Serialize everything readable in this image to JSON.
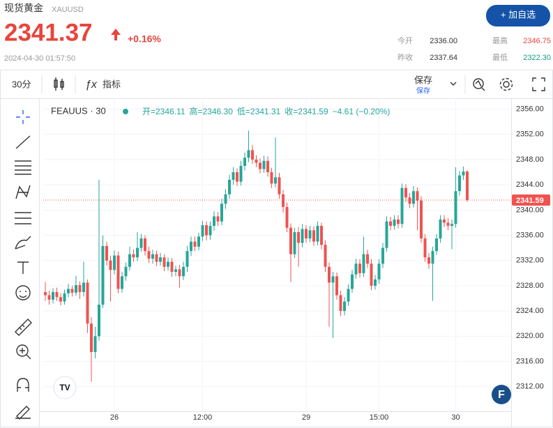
{
  "header": {
    "name": "现货黄金",
    "symbol": "XAUUSD",
    "price": "2341.37",
    "change": "+0.16%",
    "time": "2024-04-30 01:57:50",
    "button": "+ 加自选",
    "stats": [
      {
        "label": "今开",
        "value": "2336.00"
      },
      {
        "label": "最高",
        "value": "2346.75"
      },
      {
        "label": "昨收",
        "value": "2337.64"
      },
      {
        "label": "最低",
        "value": "2322.30"
      }
    ]
  },
  "toolbar": {
    "interval": "30分",
    "indicators": "指标",
    "save": "保存",
    "save_sub": "保存"
  },
  "chart_data": {
    "type": "candlestick",
    "legend_title": "FEAUUS · 30",
    "legend_items": [
      "开=2346.11",
      "高=2346.30",
      "低=2341.31",
      "收=2341.59",
      "−4.61 (−0.20%)"
    ],
    "up_color": "#26a69a",
    "down_color": "#ef5350",
    "grid": true,
    "categories": [
      null,
      null,
      null,
      null,
      null,
      null,
      null,
      null,
      null,
      null,
      null,
      null,
      null,
      null,
      null,
      null,
      null,
      null,
      "26",
      null,
      null,
      null,
      null,
      null,
      null,
      null,
      null,
      null,
      null,
      null,
      null,
      null,
      null,
      null,
      null,
      null,
      null,
      null,
      null,
      null,
      null,
      "12:00",
      null,
      null,
      null,
      null,
      null,
      null,
      null,
      null,
      null,
      null,
      null,
      null,
      null,
      null,
      null,
      null,
      null,
      null,
      null,
      null,
      null,
      null,
      null,
      null,
      null,
      null,
      "29",
      null,
      null,
      null,
      null,
      null,
      null,
      null,
      null,
      null,
      null,
      null,
      null,
      null,
      null,
      null,
      null,
      null,
      null,
      "15:00",
      null,
      null,
      null,
      null,
      null,
      null,
      null,
      null,
      null,
      null,
      null,
      null,
      null,
      null,
      null,
      null,
      null,
      null,
      null,
      "30",
      null,
      null,
      null
    ],
    "open": [
      2327.0,
      2326.5,
      2325.8,
      2327.0,
      2326.2,
      2325.5,
      2326.8,
      2327.5,
      2326.9,
      2328.1,
      2327.0,
      2328.5,
      2322.0,
      2317.5,
      2320.0,
      2325.0,
      2334.3,
      2332.0,
      2330.5,
      2332.8,
      2327.5,
      2329.5,
      2331.0,
      2333.0,
      2332.5,
      2334.0,
      2335.5,
      2333.5,
      2332.3,
      2333.0,
      2331.8,
      2332.5,
      2331.0,
      2331.8,
      2330.2,
      2330.6,
      2329.5,
      2331.0,
      2333.5,
      2335.0,
      2334.2,
      2335.8,
      2337.6,
      2336.0,
      2337.5,
      2339.0,
      2338.2,
      2341.0,
      2342.5,
      2344.8,
      2346.0,
      2344.5,
      2347.0,
      2348.3,
      2349.5,
      2348.0,
      2347.5,
      2346.5,
      2347.8,
      2346.0,
      2344.2,
      2345.2,
      2342.5,
      2340.5,
      2337.2,
      2333.0,
      2336.5,
      2334.8,
      2337.0,
      2335.5,
      2336.8,
      2335.0,
      2337.5,
      2334.5,
      2331.0,
      2328.5,
      2329.5,
      2326.5,
      2324.0,
      2325.5,
      2327.5,
      2329.8,
      2331.5,
      2330.0,
      2333.0,
      2331.5,
      2328.0,
      2329.0,
      2331.5,
      2334.0,
      2338.2,
      2337.5,
      2338.5,
      2337.8,
      2343.5,
      2342.0,
      2341.0,
      2343.0,
      2341.5,
      2335.5,
      2332.5,
      2331.5,
      2333.5,
      2335.5,
      2338.5,
      2338.0,
      2337.5,
      2337.8,
      2343.0,
      2345.5,
      2346.11
    ],
    "high": [
      2328.6,
      2327.2,
      2327.6,
      2327.7,
      2326.8,
      2327.4,
      2328.3,
      2328.0,
      2329.6,
      2328.7,
      2331.8,
      2329.0,
      2323.0,
      2321.5,
      2344.8,
      2336.0,
      2335.0,
      2332.8,
      2333.6,
      2333.4,
      2330.2,
      2331.7,
      2334.2,
      2333.8,
      2336.5,
      2336.2,
      2336.0,
      2334.2,
      2333.7,
      2333.6,
      2333.2,
      2333.0,
      2332.5,
      2332.4,
      2331.2,
      2331.3,
      2331.8,
      2334.3,
      2335.8,
      2335.8,
      2336.4,
      2338.3,
      2338.2,
      2338.2,
      2339.8,
      2339.7,
      2341.8,
      2343.3,
      2345.6,
      2346.8,
      2346.6,
      2347.8,
      2349.1,
      2352.6,
      2350.3,
      2348.7,
      2348.2,
      2348.6,
      2348.5,
      2346.7,
      2351.5,
      2345.9,
      2343.2,
      2341.2,
      2337.9,
      2337.2,
      2337.3,
      2337.8,
      2337.6,
      2337.5,
      2337.4,
      2338.2,
      2338.0,
      2335.2,
      2331.7,
      2330.2,
      2330.1,
      2327.2,
      2326.2,
      2328.2,
      2330.5,
      2332.3,
      2332.2,
      2335.8,
      2333.7,
      2332.2,
      2329.7,
      2332.2,
      2334.8,
      2339.0,
      2338.9,
      2339.2,
      2339.2,
      2344.2,
      2344.1,
      2342.7,
      2343.8,
      2343.6,
      2342.2,
      2336.2,
      2333.2,
      2334.2,
      2336.2,
      2339.2,
      2339.2,
      2338.7,
      2338.5,
      2346.8,
      2346.2,
      2346.9,
      2346.3
    ],
    "low": [
      2325.6,
      2325.0,
      2325.2,
      2325.6,
      2324.9,
      2325.0,
      2326.2,
      2326.3,
      2326.4,
      2325.9,
      2326.3,
      2320.5,
      2312.8,
      2316.5,
      2319.3,
      2324.5,
      2331.2,
      2325.5,
      2329.8,
      2326.8,
      2326.9,
      2328.8,
      2330.4,
      2331.8,
      2331.9,
      2333.4,
      2332.8,
      2331.6,
      2331.5,
      2331.1,
      2331.2,
      2330.3,
      2330.4,
      2329.4,
      2329.5,
      2327.7,
      2328.9,
      2330.2,
      2332.7,
      2333.5,
      2333.6,
      2335.1,
      2335.2,
      2335.3,
      2336.7,
      2337.5,
      2337.6,
      2340.2,
      2341.8,
      2344.0,
      2343.8,
      2343.9,
      2346.3,
      2347.6,
      2347.3,
      2346.8,
      2345.8,
      2345.9,
      2345.3,
      2343.5,
      2343.6,
      2341.8,
      2339.6,
      2336.5,
      2328.6,
      2332.4,
      2331.0,
      2334.1,
      2334.8,
      2334.9,
      2334.3,
      2334.4,
      2333.8,
      2330.2,
      2321.5,
      2319.7,
      2325.8,
      2323.2,
      2323.3,
      2324.8,
      2326.9,
      2329.1,
      2329.3,
      2329.4,
      2330.8,
      2327.3,
      2327.4,
      2328.3,
      2330.8,
      2333.4,
      2336.8,
      2336.9,
      2337.1,
      2337.2,
      2341.3,
      2340.3,
      2340.4,
      2336.8,
      2334.8,
      2331.8,
      2330.7,
      2325.6,
      2332.9,
      2334.8,
      2337.3,
      2336.8,
      2333.8,
      2337.2,
      2342.3,
      2344.8,
      2341.31
    ],
    "close": [
      2326.5,
      2325.8,
      2327.0,
      2326.2,
      2325.5,
      2326.8,
      2327.5,
      2326.9,
      2328.1,
      2327.0,
      2328.5,
      2322.0,
      2317.5,
      2320.0,
      2325.0,
      2334.3,
      2332.0,
      2330.5,
      2332.8,
      2327.5,
      2329.5,
      2331.0,
      2333.0,
      2332.5,
      2334.0,
      2335.5,
      2333.5,
      2332.3,
      2333.0,
      2331.8,
      2332.5,
      2331.0,
      2331.8,
      2330.2,
      2330.6,
      2329.5,
      2331.0,
      2333.5,
      2335.0,
      2334.2,
      2335.8,
      2337.6,
      2336.0,
      2337.5,
      2339.0,
      2338.2,
      2341.0,
      2342.5,
      2344.8,
      2346.0,
      2344.5,
      2347.0,
      2348.3,
      2349.5,
      2348.0,
      2347.5,
      2346.5,
      2347.8,
      2346.0,
      2344.2,
      2345.2,
      2342.5,
      2340.5,
      2337.2,
      2333.0,
      2336.5,
      2334.8,
      2337.0,
      2335.5,
      2336.8,
      2335.0,
      2337.5,
      2334.5,
      2331.0,
      2328.5,
      2329.5,
      2326.5,
      2324.0,
      2325.5,
      2327.5,
      2329.8,
      2331.5,
      2330.0,
      2333.0,
      2331.5,
      2328.0,
      2329.0,
      2331.5,
      2334.0,
      2338.2,
      2337.5,
      2338.5,
      2337.8,
      2343.5,
      2342.0,
      2341.0,
      2343.0,
      2341.5,
      2335.5,
      2332.5,
      2331.5,
      2333.5,
      2335.5,
      2338.5,
      2338.0,
      2337.5,
      2337.8,
      2343.0,
      2345.5,
      2346.11,
      2341.59
    ],
    "ylim": [
      2308.1,
      2357.5
    ],
    "yticks": [
      {
        "value": 2312,
        "label": "2312.00"
      },
      {
        "value": 2316,
        "label": "2316.00"
      },
      {
        "value": 2320,
        "label": "2320.00"
      },
      {
        "value": 2324,
        "label": "2324.00"
      },
      {
        "value": 2328,
        "label": "2328.00"
      },
      {
        "value": 2332,
        "label": "2332.00"
      },
      {
        "value": 2336,
        "label": "2336.00"
      },
      {
        "value": 2340,
        "label": "2340.00"
      },
      {
        "value": 2344,
        "label": "2344.00"
      },
      {
        "value": 2348,
        "label": "2348.00"
      },
      {
        "value": 2352,
        "label": "2352.00"
      },
      {
        "value": 2356,
        "label": "2356.00"
      }
    ]
  }
}
